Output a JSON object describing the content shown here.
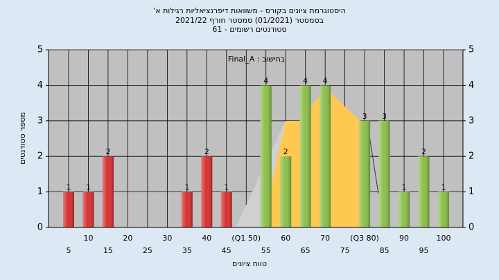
{
  "chart_data": {
    "type": "bar",
    "title": "היסטוגרמת ציונים בקורס - משוואות דיפרנציאליות רגילות א'",
    "subtitle": "בסמסטר (01/2021) סמסטר חורף 2021/22",
    "subtitle2": "סטודנטים רשומים - 61",
    "annotation": "בחישוב : Final_A",
    "x_label": "טווח ציונים",
    "y_label": "מספר סטודנטים",
    "categories": [
      "5",
      "10",
      "15",
      "20",
      "25",
      "30",
      "35",
      "40",
      "45",
      "(Q1 50)",
      "55",
      "60",
      "65",
      "70",
      "75",
      "(Q3 80)",
      "85",
      "90",
      "95",
      "100"
    ],
    "values": [
      1,
      1,
      2,
      0,
      0,
      0,
      1,
      2,
      1,
      0,
      4,
      2,
      4,
      4,
      0,
      3,
      3,
      1,
      2,
      1
    ],
    "colors": [
      "#d93030",
      "#d93030",
      "#d93030",
      "#d93030",
      "#d93030",
      "#d93030",
      "#d93030",
      "#d93030",
      "#d93030",
      "#d93030",
      "#8cbf4a",
      "#8cbf4a",
      "#8cbf4a",
      "#8cbf4a",
      "#8cbf4a",
      "#8cbf4a",
      "#8cbf4a",
      "#8cbf4a",
      "#8cbf4a",
      "#8cbf4a"
    ],
    "ylim": [
      0,
      5
    ],
    "yticks": [
      0,
      1,
      2,
      3,
      4,
      5
    ],
    "grid": true
  }
}
